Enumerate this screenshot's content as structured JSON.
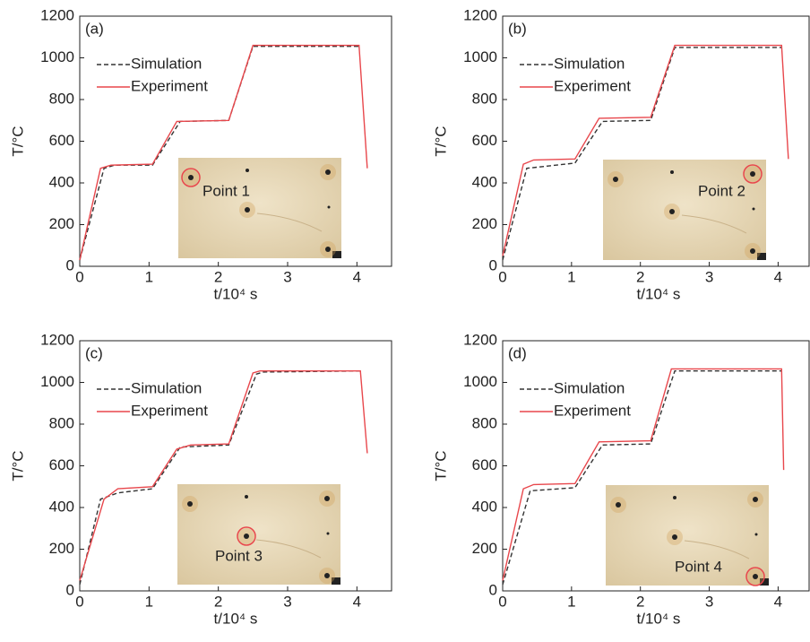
{
  "chart_data": [
    {
      "type": "line",
      "panel_label": "(a)",
      "annotation": "Point 1",
      "x_label": "t/10⁴ s",
      "y_label": "T/°C",
      "xlim": [
        0,
        4.5
      ],
      "ylim": [
        0,
        1200
      ],
      "xticks": [
        0,
        1,
        2,
        3,
        4
      ],
      "yticks": [
        0,
        200,
        400,
        600,
        800,
        1000,
        1200
      ],
      "series": [
        {
          "name": "Simulation",
          "color": "#333333",
          "dashed": true,
          "x": [
            0,
            0.35,
            0.5,
            1.05,
            1.45,
            2.15,
            2.5,
            4.05
          ],
          "values": [
            30,
            470,
            485,
            485,
            695,
            700,
            1055,
            1055
          ]
        },
        {
          "name": "Experiment",
          "color": "#e8474c",
          "dashed": false,
          "x": [
            0,
            0.3,
            0.45,
            1.05,
            1.4,
            2.15,
            2.5,
            4.03,
            4.15
          ],
          "values": [
            30,
            470,
            485,
            490,
            695,
            700,
            1060,
            1060,
            470
          ]
        }
      ]
    },
    {
      "type": "line",
      "panel_label": "(b)",
      "annotation": "Point 2",
      "x_label": "t/10⁴ s",
      "y_label": "T/°C",
      "xlim": [
        0,
        4.45
      ],
      "ylim": [
        0,
        1200
      ],
      "xticks": [
        0,
        1,
        2,
        3,
        4
      ],
      "yticks": [
        0,
        200,
        400,
        600,
        800,
        1000,
        1200
      ],
      "series": [
        {
          "name": "Simulation",
          "color": "#333333",
          "dashed": true,
          "x": [
            0,
            0.35,
            1.05,
            1.45,
            2.15,
            2.5,
            4.05
          ],
          "values": [
            30,
            470,
            495,
            695,
            700,
            1050,
            1050
          ]
        },
        {
          "name": "Experiment",
          "color": "#e8474c",
          "dashed": false,
          "x": [
            0,
            0.3,
            0.45,
            1.05,
            1.4,
            2.15,
            2.5,
            4.05,
            4.15
          ],
          "values": [
            50,
            490,
            510,
            515,
            710,
            715,
            1060,
            1060,
            515
          ]
        }
      ]
    },
    {
      "type": "line",
      "panel_label": "(c)",
      "annotation": "Point 3",
      "x_label": "t/10⁴ s",
      "y_label": "T/°C",
      "xlim": [
        0,
        4.5
      ],
      "ylim": [
        0,
        1200
      ],
      "xticks": [
        0,
        1,
        2,
        3,
        4
      ],
      "yticks": [
        0,
        200,
        400,
        600,
        800,
        1000,
        1200
      ],
      "series": [
        {
          "name": "Simulation",
          "color": "#333333",
          "dashed": true,
          "x": [
            0,
            0.3,
            0.55,
            1.05,
            1.45,
            2.15,
            2.55,
            2.65,
            4.05
          ],
          "values": [
            30,
            440,
            470,
            490,
            690,
            700,
            1040,
            1050,
            1055
          ]
        },
        {
          "name": "Experiment",
          "color": "#e8474c",
          "dashed": false,
          "x": [
            0,
            0.35,
            0.55,
            1.05,
            1.4,
            1.6,
            2.15,
            2.5,
            2.6,
            4.05,
            4.15
          ],
          "values": [
            50,
            440,
            490,
            500,
            680,
            700,
            705,
            1045,
            1055,
            1055,
            660
          ]
        }
      ]
    },
    {
      "type": "line",
      "panel_label": "(d)",
      "annotation": "Point 4",
      "x_label": "t/10⁴ s",
      "y_label": "T/°C",
      "xlim": [
        0,
        4.45
      ],
      "ylim": [
        0,
        1200
      ],
      "xticks": [
        0,
        1,
        2,
        3,
        4
      ],
      "yticks": [
        0,
        200,
        400,
        600,
        800,
        1000,
        1200
      ],
      "series": [
        {
          "name": "Simulation",
          "color": "#333333",
          "dashed": true,
          "x": [
            0,
            0.4,
            1.05,
            1.45,
            2.15,
            2.5,
            4.05
          ],
          "values": [
            30,
            480,
            495,
            700,
            705,
            1055,
            1055
          ]
        },
        {
          "name": "Experiment",
          "color": "#e8474c",
          "dashed": false,
          "x": [
            0,
            0.3,
            0.45,
            1.05,
            1.4,
            2.15,
            2.45,
            4.05,
            4.08
          ],
          "values": [
            50,
            490,
            510,
            515,
            715,
            720,
            1065,
            1065,
            580
          ]
        }
      ]
    }
  ]
}
